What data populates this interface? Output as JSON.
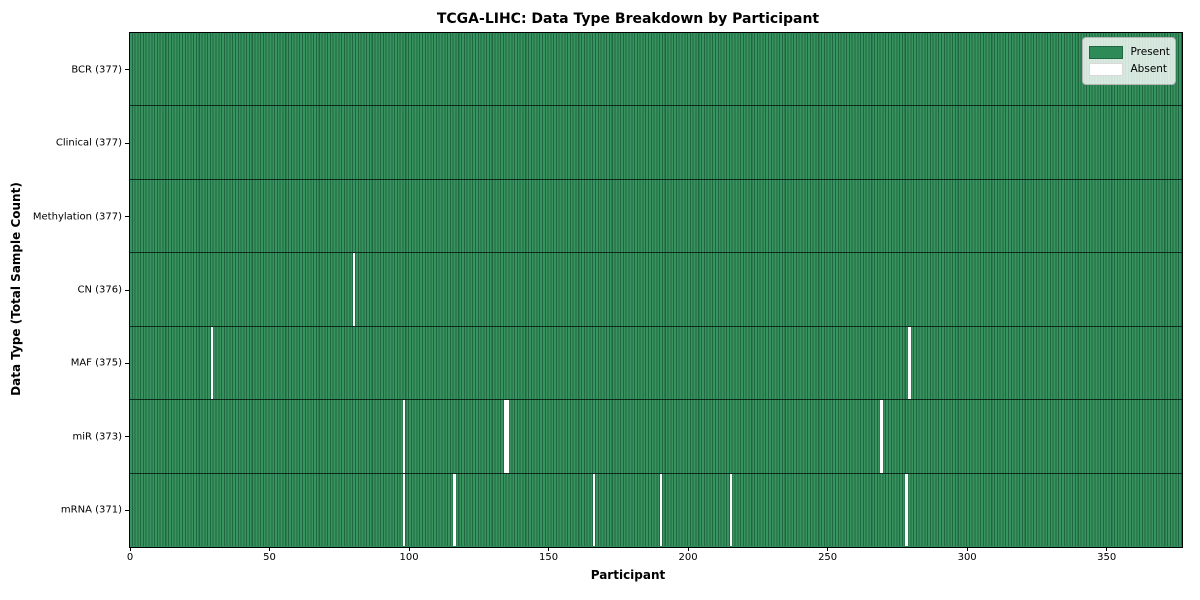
{
  "figure": {
    "title": "TCGA-LIHC: Data Type Breakdown by Participant",
    "xlabel": "Participant",
    "ylabel": "Data Type (Total Sample Count)"
  },
  "legend": {
    "items": [
      {
        "name": "present",
        "label": "Present",
        "color": "#2e8b57"
      },
      {
        "name": "absent",
        "label": "Absent",
        "color": "#ffffff"
      }
    ]
  },
  "chart_data": {
    "type": "heatmap",
    "title": "TCGA-LIHC: Data Type Breakdown by Participant",
    "xlabel": "Participant",
    "ylabel": "Data Type (Total Sample Count)",
    "n_participants": 377,
    "xlim": [
      0,
      377
    ],
    "x_ticks": [
      0,
      50,
      100,
      150,
      200,
      250,
      300,
      350
    ],
    "grid": false,
    "legend_position": "upper right",
    "value_legend": {
      "1": "Present",
      "0": "Absent"
    },
    "rows": [
      {
        "label": "BCR (377)",
        "data_type": "BCR",
        "total": 377,
        "absent_participants": []
      },
      {
        "label": "Clinical (377)",
        "data_type": "Clinical",
        "total": 377,
        "absent_participants": []
      },
      {
        "label": "Methylation (377)",
        "data_type": "Methylation",
        "total": 377,
        "absent_participants": []
      },
      {
        "label": "CN (376)",
        "data_type": "CN",
        "total": 376,
        "absent_participants": [
          80
        ]
      },
      {
        "label": "MAF (375)",
        "data_type": "MAF",
        "total": 375,
        "absent_participants": [
          29,
          279
        ]
      },
      {
        "label": "miR (373)",
        "data_type": "miR",
        "total": 373,
        "absent_participants": [
          98,
          134,
          135,
          269
        ]
      },
      {
        "label": "mRNA (371)",
        "data_type": "mRNA",
        "total": 371,
        "absent_participants": [
          98,
          116,
          166,
          190,
          215,
          278
        ]
      }
    ],
    "colors": {
      "present": "#2e8b57",
      "present_stripe_light": "#38945f",
      "present_stripe_dark": "#1f6742",
      "absent": "#ffffff",
      "row_separator": "#0a1a10",
      "axis": "#000000"
    }
  }
}
